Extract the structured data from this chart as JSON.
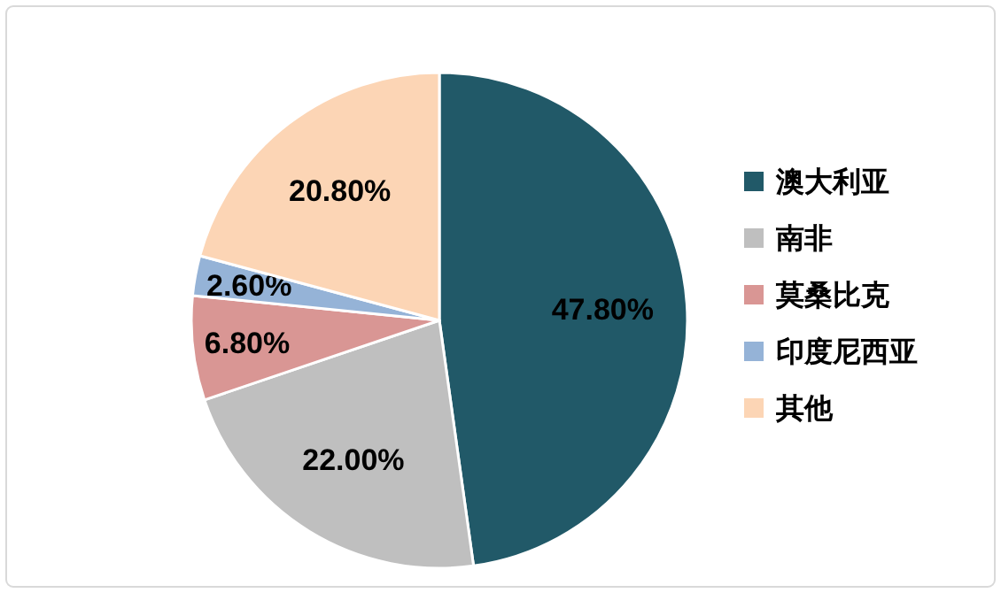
{
  "chart_data": {
    "type": "pie",
    "categories": [
      "澳大利亚",
      "南非",
      "莫桑比克",
      "印度尼西亚",
      "其他"
    ],
    "values": [
      47.8,
      22.0,
      6.8,
      2.6,
      20.8
    ],
    "colors": [
      "#215968",
      "#bfbfbf",
      "#d99694",
      "#95b3d7",
      "#fcd5b5"
    ],
    "value_labels": [
      "47.80%",
      "22.00%",
      "6.80%",
      "2.60%",
      "20.80%"
    ],
    "legend": "right"
  }
}
